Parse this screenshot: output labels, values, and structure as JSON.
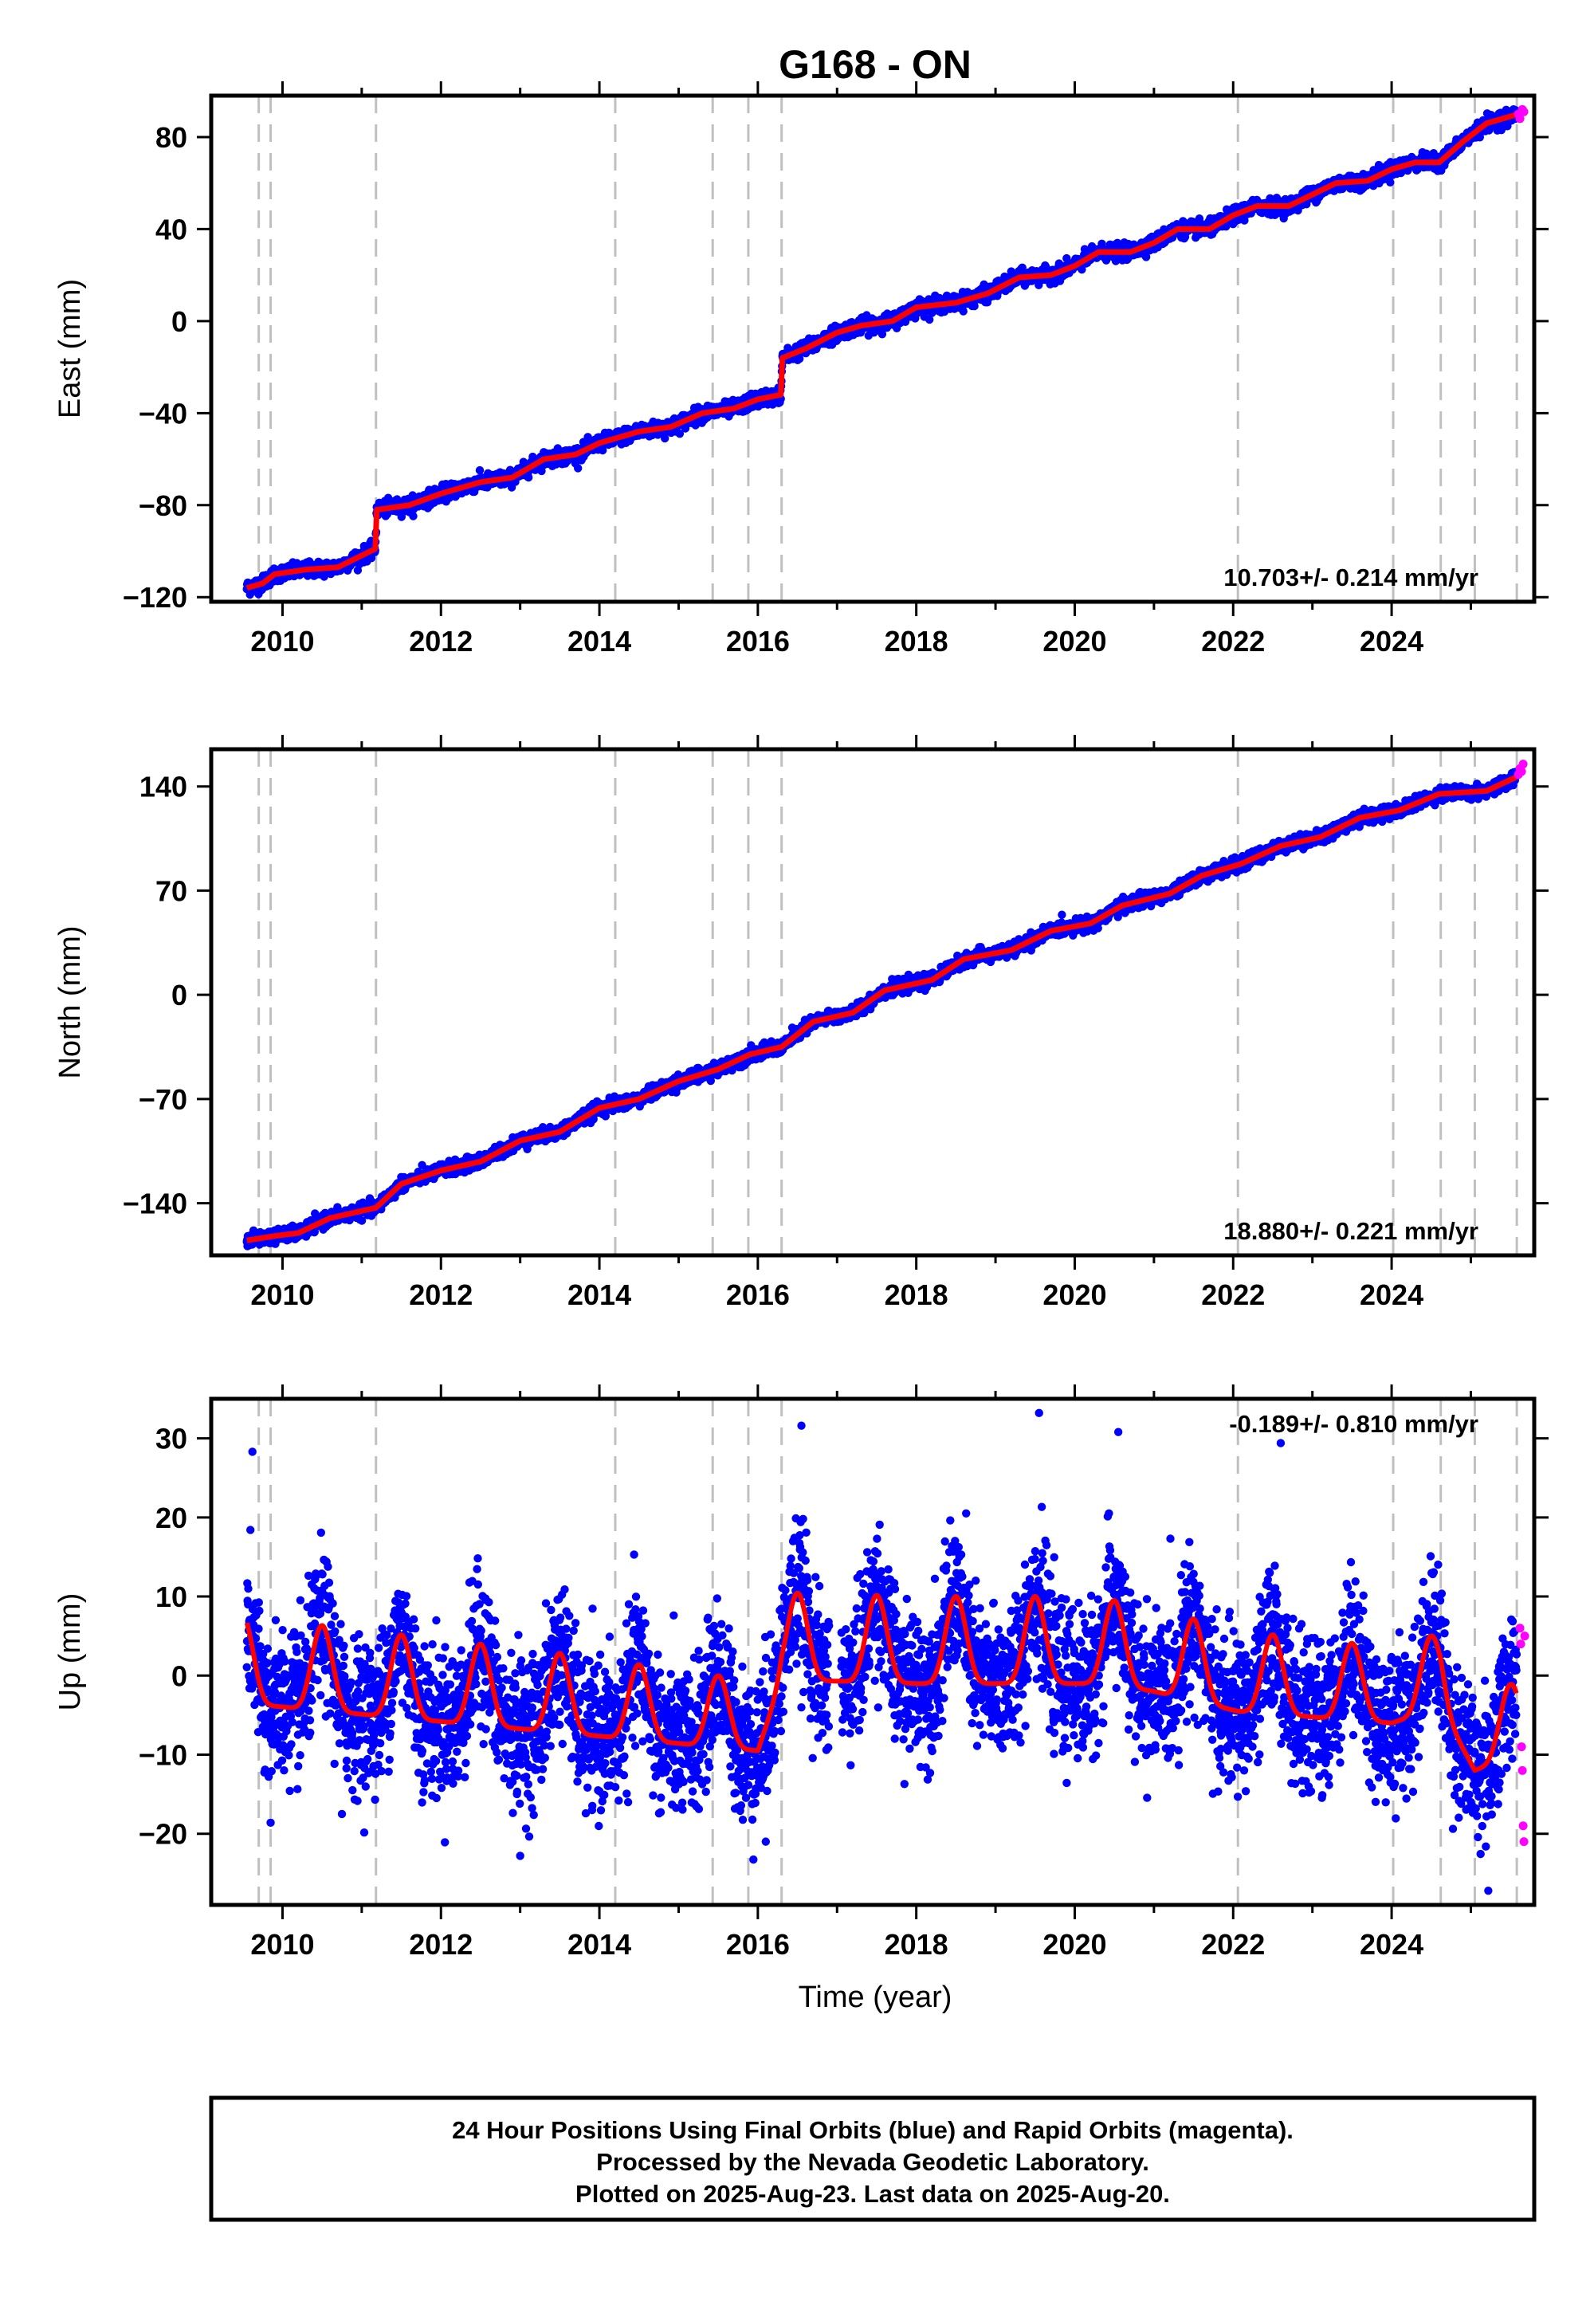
{
  "figure": {
    "title": "G168 - ON",
    "x_axis_label": "Time (year)",
    "footer_lines": [
      "24 Hour Positions Using Final Orbits (blue) and Rapid Orbits (magenta).",
      "Processed by the Nevada Geodetic Laboratory.",
      "Plotted on 2025-Aug-23. Last data on 2025-Aug-20."
    ],
    "colors": {
      "final": "#0000ff",
      "rapid": "#ff00ff",
      "model": "#ff0000",
      "equipment_change": "#c0c0c0"
    }
  },
  "chart_data": [
    {
      "type": "scatter",
      "name": "east",
      "ylabel": "East (mm)",
      "xlim": [
        2009.1,
        2025.8
      ],
      "ylim": [
        -122,
        98
      ],
      "yticks": [
        -120,
        -80,
        -40,
        0,
        40,
        80
      ],
      "xticks": [
        2010,
        2012,
        2014,
        2016,
        2018,
        2020,
        2022,
        2024
      ],
      "rate": "10.703+/- 0.214 mm/yr",
      "rate_position": "bottom-right",
      "equipment_changes": [
        2009.7,
        2009.85,
        2011.18,
        2014.2,
        2015.43,
        2015.88,
        2016.3,
        2022.06,
        2024.02,
        2024.62,
        2025.05,
        2025.58
      ],
      "trend_points": [
        [
          2009.55,
          -116
        ],
        [
          2009.75,
          -114
        ],
        [
          2009.9,
          -110
        ],
        [
          2010.3,
          -108
        ],
        [
          2010.7,
          -107
        ],
        [
          2011.17,
          -99
        ],
        [
          2011.19,
          -82
        ],
        [
          2011.6,
          -80
        ],
        [
          2012.0,
          -75
        ],
        [
          2012.5,
          -70
        ],
        [
          2012.9,
          -68
        ],
        [
          2013.3,
          -60
        ],
        [
          2013.7,
          -58
        ],
        [
          2014.0,
          -53
        ],
        [
          2014.5,
          -48
        ],
        [
          2014.9,
          -46
        ],
        [
          2015.3,
          -40
        ],
        [
          2015.7,
          -38
        ],
        [
          2016.0,
          -34
        ],
        [
          2016.29,
          -32
        ],
        [
          2016.31,
          -16
        ],
        [
          2016.6,
          -12
        ],
        [
          2017.0,
          -5
        ],
        [
          2017.3,
          -2
        ],
        [
          2017.7,
          0
        ],
        [
          2018.0,
          6
        ],
        [
          2018.5,
          8
        ],
        [
          2018.9,
          12
        ],
        [
          2019.3,
          19
        ],
        [
          2019.7,
          20
        ],
        [
          2020.0,
          24
        ],
        [
          2020.3,
          30
        ],
        [
          2020.7,
          30
        ],
        [
          2021.0,
          34
        ],
        [
          2021.3,
          40
        ],
        [
          2021.7,
          40
        ],
        [
          2022.0,
          46
        ],
        [
          2022.3,
          50
        ],
        [
          2022.7,
          50
        ],
        [
          2023.0,
          55
        ],
        [
          2023.3,
          60
        ],
        [
          2023.7,
          61
        ],
        [
          2024.0,
          66
        ],
        [
          2024.3,
          69
        ],
        [
          2024.6,
          69
        ],
        [
          2024.9,
          78
        ],
        [
          2025.2,
          86
        ],
        [
          2025.6,
          90
        ]
      ],
      "rapid_points": [
        [
          2025.6,
          90
        ],
        [
          2025.62,
          88
        ],
        [
          2025.65,
          92
        ],
        [
          2025.67,
          91
        ]
      ],
      "noise": 1.6
    },
    {
      "type": "scatter",
      "name": "north",
      "ylabel": "North (mm)",
      "xlim": [
        2009.1,
        2025.8
      ],
      "ylim": [
        -175,
        165
      ],
      "yticks": [
        -140,
        -70,
        0,
        70,
        140
      ],
      "xticks": [
        2010,
        2012,
        2014,
        2016,
        2018,
        2020,
        2022,
        2024
      ],
      "rate": "18.880+/- 0.221 mm/yr",
      "rate_position": "bottom-right",
      "equipment_changes": [
        2009.7,
        2009.85,
        2011.18,
        2014.2,
        2015.43,
        2015.88,
        2016.3,
        2022.06,
        2024.02,
        2024.62,
        2025.05,
        2025.58
      ],
      "trend_points": [
        [
          2009.55,
          -165
        ],
        [
          2009.9,
          -162
        ],
        [
          2010.2,
          -160
        ],
        [
          2010.6,
          -150
        ],
        [
          2011.18,
          -143
        ],
        [
          2011.5,
          -127
        ],
        [
          2012.0,
          -118
        ],
        [
          2012.5,
          -112
        ],
        [
          2013.0,
          -98
        ],
        [
          2013.5,
          -92
        ],
        [
          2014.0,
          -76
        ],
        [
          2014.5,
          -70
        ],
        [
          2015.0,
          -58
        ],
        [
          2015.5,
          -50
        ],
        [
          2015.9,
          -40
        ],
        [
          2016.3,
          -35
        ],
        [
          2016.7,
          -18
        ],
        [
          2017.2,
          -12
        ],
        [
          2017.6,
          3
        ],
        [
          2018.2,
          10
        ],
        [
          2018.6,
          24
        ],
        [
          2019.2,
          30
        ],
        [
          2019.7,
          43
        ],
        [
          2020.2,
          48
        ],
        [
          2020.6,
          60
        ],
        [
          2021.2,
          68
        ],
        [
          2021.6,
          80
        ],
        [
          2022.1,
          88
        ],
        [
          2022.6,
          100
        ],
        [
          2023.1,
          106
        ],
        [
          2023.6,
          119
        ],
        [
          2024.1,
          124
        ],
        [
          2024.6,
          135
        ],
        [
          2025.2,
          137
        ],
        [
          2025.6,
          147
        ]
      ],
      "rapid_points": [
        [
          2025.6,
          148
        ],
        [
          2025.62,
          152
        ],
        [
          2025.64,
          150
        ],
        [
          2025.66,
          155
        ]
      ],
      "noise": 2.2
    },
    {
      "type": "scatter",
      "name": "up",
      "ylabel": "Up (mm)",
      "xlim": [
        2009.1,
        2025.8
      ],
      "ylim": [
        -29,
        35
      ],
      "yticks": [
        -20,
        -10,
        0,
        10,
        20,
        30
      ],
      "xticks": [
        2010,
        2012,
        2014,
        2016,
        2018,
        2020,
        2022,
        2024
      ],
      "rate": "-0.189+/- 0.810 mm/yr",
      "rate_position": "top-right",
      "equipment_changes": [
        2009.7,
        2009.85,
        2011.18,
        2014.2,
        2015.43,
        2015.88,
        2016.3,
        2022.06,
        2024.02,
        2024.62,
        2025.05,
        2025.58
      ],
      "seasonal_model": {
        "offsets": [
          [
            2009.5,
            -3.5
          ],
          [
            2016.0,
            -9.5
          ],
          [
            2016.3,
            -0.5
          ],
          [
            2018.0,
            -1
          ],
          [
            2020.4,
            -1
          ],
          [
            2021.0,
            -2
          ],
          [
            2022.06,
            -4.5
          ],
          [
            2024.0,
            -6
          ],
          [
            2024.62,
            -4
          ],
          [
            2025.05,
            -12
          ],
          [
            2025.8,
            -9
          ]
        ],
        "amplitude": [
          [
            2009.5,
            11
          ],
          [
            2013.5,
            10
          ],
          [
            2015.5,
            9
          ],
          [
            2016.5,
            11
          ],
          [
            2019.5,
            11
          ],
          [
            2022.5,
            10
          ],
          [
            2025.8,
            9
          ]
        ],
        "peak_phase": 0.5
      },
      "rapid_points": [
        [
          2025.62,
          6
        ],
        [
          2025.63,
          4
        ],
        [
          2025.64,
          -9
        ],
        [
          2025.65,
          -12
        ],
        [
          2025.66,
          -19
        ],
        [
          2025.67,
          -21
        ],
        [
          2025.68,
          5
        ]
      ],
      "noise": 4.5,
      "outliers": [
        [
          2009.62,
          28.3
        ],
        [
          2016.55,
          31.6
        ],
        [
          2019.55,
          33.2
        ],
        [
          2020.55,
          30.8
        ],
        [
          2022.6,
          29.4
        ],
        [
          2013.0,
          -22.8
        ],
        [
          2016.1,
          -21
        ],
        [
          2025.22,
          -27.2
        ],
        [
          2010.75,
          -17.5
        ],
        [
          2009.85,
          -18.6
        ]
      ]
    }
  ]
}
